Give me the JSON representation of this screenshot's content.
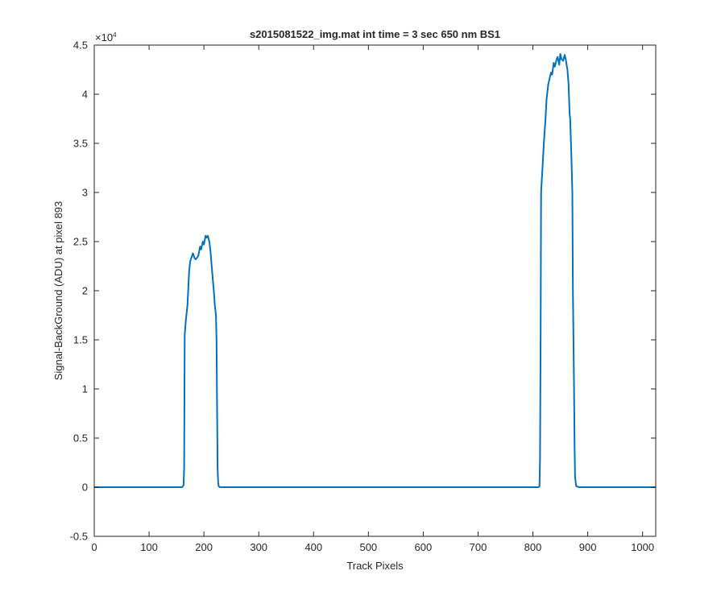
{
  "chart_data": {
    "type": "line",
    "title": "s2015081522_img.mat int time = 3 sec  650 nm BS1",
    "xlabel": "Track Pixels",
    "ylabel": "Signal-BackGround (ADU) at pixel 893",
    "xlim": [
      0,
      1024
    ],
    "ylim": [
      -5000,
      45000
    ],
    "xticks": [
      0,
      100,
      200,
      300,
      400,
      500,
      600,
      700,
      800,
      900,
      1000
    ],
    "yticks": [
      -0.5,
      0,
      0.5,
      1,
      1.5,
      2,
      2.5,
      3,
      3.5,
      4,
      4.5
    ],
    "y_exponent_label": "×10",
    "y_exponent_power": "4",
    "grid": false,
    "series_color": "#0072BD",
    "series": [
      {
        "x": [
          0,
          100,
          150,
          160,
          163,
          164,
          165,
          167,
          170,
          173,
          175,
          178,
          180,
          183,
          185,
          188,
          190,
          193,
          195,
          198,
          200,
          203,
          205,
          207,
          210,
          212,
          215,
          218,
          220,
          222,
          223,
          224,
          225,
          226,
          227,
          229,
          231,
          240,
          300,
          400,
          500,
          600,
          700,
          800,
          810,
          812,
          813,
          814,
          815,
          817,
          820,
          823,
          825,
          828,
          830,
          833,
          835,
          838,
          840,
          843,
          845,
          848,
          850,
          852,
          855,
          858,
          860,
          863,
          865,
          867,
          868,
          870,
          872,
          873,
          875,
          876,
          877,
          879,
          885,
          950,
          1024
        ],
        "y": [
          0,
          0,
          0,
          0,
          200,
          2000,
          15500,
          17000,
          18500,
          22000,
          23000,
          23500,
          23800,
          23300,
          23200,
          23400,
          23600,
          24500,
          24200,
          25000,
          24700,
          25600,
          25400,
          25600,
          25000,
          24000,
          22000,
          20000,
          18500,
          17500,
          15000,
          8000,
          2000,
          500,
          100,
          0,
          0,
          0,
          0,
          0,
          0,
          0,
          0,
          0,
          0,
          100,
          3000,
          15000,
          30000,
          32000,
          35000,
          37500,
          39500,
          41000,
          41500,
          42200,
          42000,
          43200,
          42800,
          43500,
          43800,
          43000,
          44100,
          43600,
          43400,
          44000,
          43500,
          42500,
          41000,
          38000,
          37500,
          34000,
          30000,
          20000,
          10000,
          4000,
          1000,
          100,
          0,
          0,
          0
        ]
      }
    ]
  }
}
